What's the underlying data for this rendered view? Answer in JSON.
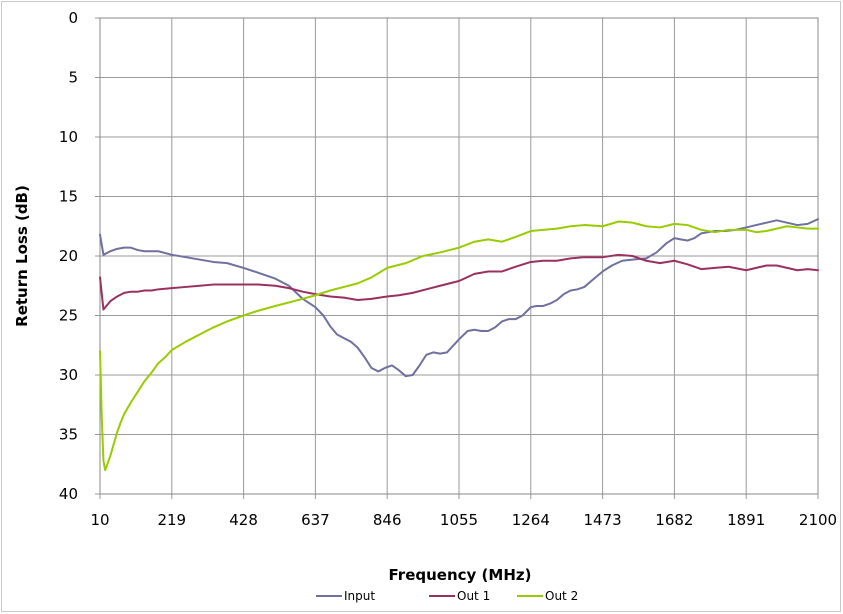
{
  "chart_data": {
    "type": "line",
    "title": "",
    "xlabel": "Frequency (MHz)",
    "ylabel": "Return Loss (dB)",
    "xlim": [
      10,
      2100
    ],
    "ylim": [
      0,
      40
    ],
    "y_inverted": true,
    "xticks": [
      10,
      219,
      428,
      637,
      846,
      1055,
      1264,
      1473,
      1682,
      1891,
      2100
    ],
    "yticks": [
      0,
      5,
      10,
      15,
      20,
      25,
      30,
      35,
      40
    ],
    "grid": true,
    "legend_position": "bottom",
    "series": [
      {
        "name": "Input",
        "color": "#7070a0",
        "x": [
          10,
          20,
          40,
          60,
          80,
          100,
          120,
          140,
          160,
          180,
          219,
          260,
          300,
          340,
          380,
          428,
          470,
          520,
          560,
          600,
          637,
          660,
          680,
          700,
          720,
          740,
          760,
          780,
          800,
          820,
          840,
          860,
          880,
          900,
          920,
          940,
          960,
          980,
          1000,
          1020,
          1055,
          1080,
          1100,
          1120,
          1140,
          1160,
          1180,
          1200,
          1220,
          1240,
          1264,
          1280,
          1300,
          1320,
          1340,
          1360,
          1380,
          1400,
          1420,
          1440,
          1473,
          1500,
          1530,
          1560,
          1600,
          1630,
          1660,
          1682,
          1700,
          1720,
          1740,
          1760,
          1780,
          1800,
          1830,
          1860,
          1891,
          1920,
          1950,
          1980,
          2010,
          2040,
          2070,
          2100
        ],
        "y": [
          18.2,
          19.9,
          19.6,
          19.4,
          19.3,
          19.3,
          19.5,
          19.6,
          19.6,
          19.6,
          19.9,
          20.1,
          20.3,
          20.5,
          20.6,
          21.0,
          21.4,
          21.9,
          22.5,
          23.6,
          24.3,
          25.0,
          25.9,
          26.6,
          26.9,
          27.2,
          27.7,
          28.5,
          29.4,
          29.7,
          29.4,
          29.2,
          29.6,
          30.1,
          30.0,
          29.2,
          28.3,
          28.1,
          28.2,
          28.1,
          27.0,
          26.3,
          26.2,
          26.3,
          26.3,
          26.0,
          25.5,
          25.3,
          25.3,
          25.0,
          24.3,
          24.2,
          24.2,
          24.0,
          23.7,
          23.2,
          22.9,
          22.8,
          22.6,
          22.1,
          21.3,
          20.8,
          20.4,
          20.3,
          20.2,
          19.7,
          18.9,
          18.5,
          18.6,
          18.7,
          18.5,
          18.1,
          18.0,
          17.9,
          17.9,
          17.8,
          17.6,
          17.4,
          17.2,
          17.0,
          17.2,
          17.4,
          17.3,
          16.9
        ]
      },
      {
        "name": "Out 1",
        "color": "#9a3060",
        "x": [
          10,
          20,
          40,
          60,
          80,
          100,
          120,
          140,
          160,
          180,
          219,
          260,
          300,
          340,
          380,
          428,
          470,
          520,
          560,
          600,
          637,
          680,
          720,
          760,
          800,
          846,
          880,
          920,
          960,
          1000,
          1055,
          1100,
          1140,
          1180,
          1220,
          1264,
          1300,
          1340,
          1380,
          1420,
          1473,
          1520,
          1560,
          1600,
          1640,
          1682,
          1720,
          1760,
          1800,
          1840,
          1891,
          1920,
          1950,
          1980,
          2010,
          2040,
          2070,
          2100
        ],
        "y": [
          21.8,
          24.5,
          23.8,
          23.4,
          23.1,
          23.0,
          23.0,
          22.9,
          22.9,
          22.8,
          22.7,
          22.6,
          22.5,
          22.4,
          22.4,
          22.4,
          22.4,
          22.5,
          22.7,
          23.0,
          23.2,
          23.4,
          23.5,
          23.7,
          23.6,
          23.4,
          23.3,
          23.1,
          22.8,
          22.5,
          22.1,
          21.5,
          21.3,
          21.3,
          20.9,
          20.5,
          20.4,
          20.4,
          20.2,
          20.1,
          20.1,
          19.9,
          20.0,
          20.4,
          20.6,
          20.4,
          20.7,
          21.1,
          21.0,
          20.9,
          21.2,
          21.0,
          20.8,
          20.8,
          21.0,
          21.2,
          21.1,
          21.2
        ]
      },
      {
        "name": "Out 2",
        "color": "#99cc00",
        "x": [
          10,
          15,
          20,
          25,
          30,
          40,
          50,
          60,
          70,
          80,
          100,
          120,
          140,
          160,
          180,
          200,
          219,
          260,
          300,
          340,
          380,
          428,
          470,
          520,
          560,
          600,
          637,
          680,
          720,
          760,
          800,
          846,
          900,
          950,
          1000,
          1055,
          1100,
          1140,
          1180,
          1220,
          1264,
          1300,
          1340,
          1380,
          1420,
          1473,
          1520,
          1560,
          1600,
          1640,
          1682,
          1720,
          1760,
          1800,
          1840,
          1891,
          1920,
          1950,
          1980,
          2010,
          2040,
          2070,
          2100
        ],
        "y": [
          28.0,
          33.5,
          37.2,
          38.0,
          37.6,
          36.8,
          35.8,
          34.8,
          34.0,
          33.3,
          32.3,
          31.4,
          30.5,
          29.8,
          29.0,
          28.5,
          27.9,
          27.2,
          26.6,
          26.0,
          25.5,
          25.0,
          24.6,
          24.2,
          23.9,
          23.6,
          23.3,
          22.9,
          22.6,
          22.3,
          21.8,
          21.0,
          20.6,
          20.0,
          19.7,
          19.3,
          18.8,
          18.6,
          18.8,
          18.4,
          17.9,
          17.8,
          17.7,
          17.5,
          17.4,
          17.5,
          17.1,
          17.2,
          17.5,
          17.6,
          17.3,
          17.4,
          17.8,
          18.0,
          17.8,
          17.8,
          18.0,
          17.9,
          17.7,
          17.5,
          17.6,
          17.7,
          17.7
        ]
      }
    ]
  }
}
